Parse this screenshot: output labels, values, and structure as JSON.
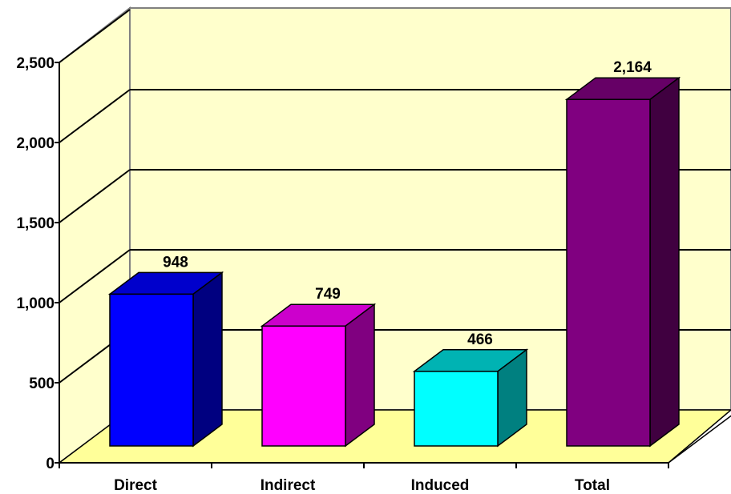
{
  "chart_data": {
    "type": "bar",
    "categories": [
      "Direct",
      "Indirect",
      "Induced",
      "Total"
    ],
    "values": [
      948,
      749,
      466,
      2164
    ],
    "data_labels": [
      "948",
      "749",
      "466",
      "2,164"
    ],
    "ylim": [
      0,
      2500
    ],
    "yticks": [
      0,
      500,
      1000,
      1500,
      2000,
      2500
    ],
    "ytick_labels": [
      "0",
      "500",
      "1,000",
      "1,500",
      "2,000",
      "2,500"
    ],
    "grid": true,
    "three_d": true,
    "colors": {
      "wall": "#FFFFCC",
      "floor": "#FFFF99",
      "bars": [
        {
          "front": "#0000FF",
          "top": "#0000CC",
          "side": "#000080"
        },
        {
          "front": "#FF00FF",
          "top": "#CC00CC",
          "side": "#800080"
        },
        {
          "front": "#00FFFF",
          "top": "#00B3B3",
          "side": "#008080"
        },
        {
          "front": "#800080",
          "top": "#660066",
          "side": "#400040"
        }
      ]
    }
  }
}
